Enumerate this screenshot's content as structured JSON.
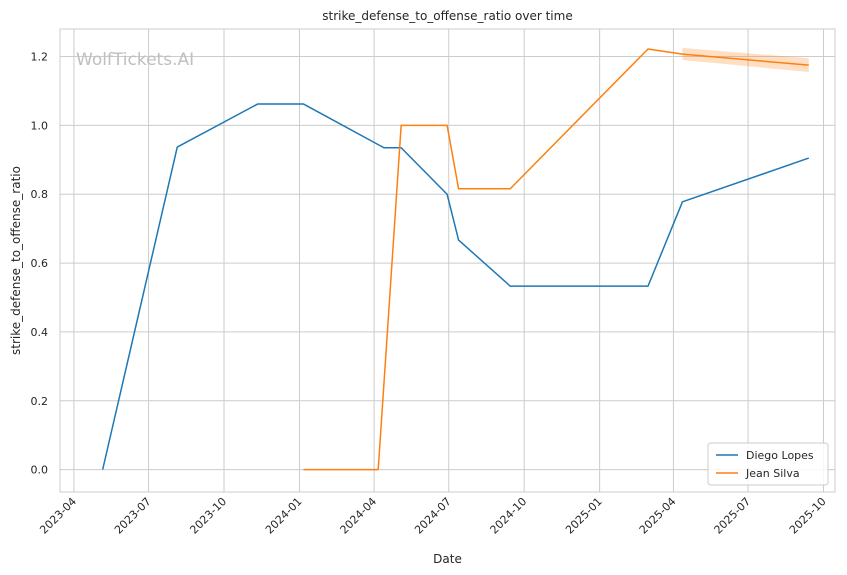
{
  "chart_data": {
    "type": "line",
    "title": "strike_defense_to_offense_ratio over time",
    "xlabel": "Date",
    "ylabel": "strike_defense_to_offense_ratio",
    "watermark": "WolfTickets.AI",
    "x_type": "date",
    "xlim": [
      "2023-03-15",
      "2025-10-15"
    ],
    "ylim": [
      -0.065,
      1.28
    ],
    "x_ticks": [
      "2023-04-01",
      "2023-07-01",
      "2023-10-01",
      "2024-01-01",
      "2024-04-01",
      "2024-07-01",
      "2024-10-01",
      "2025-01-01",
      "2025-04-01",
      "2025-07-01",
      "2025-10-01"
    ],
    "x_tick_labels": [
      "2023-04",
      "2023-07",
      "2023-10",
      "2024-01",
      "2024-04",
      "2024-07",
      "2024-10",
      "2025-01",
      "2025-04",
      "2025-07",
      "2025-10"
    ],
    "y_ticks": [
      0.0,
      0.2,
      0.4,
      0.6,
      0.8,
      1.0,
      1.2
    ],
    "y_tick_labels": [
      "0.0",
      "0.2",
      "0.4",
      "0.6",
      "0.8",
      "1.0",
      "1.2"
    ],
    "grid": true,
    "legend_position": "bottom-right",
    "series": [
      {
        "name": "Diego Lopes",
        "color": "#1f77b4",
        "x": [
          "2023-05-06",
          "2023-08-05",
          "2023-11-11",
          "2024-01-06",
          "2024-04-13",
          "2024-05-04",
          "2024-06-29",
          "2024-07-13",
          "2024-09-14",
          "2025-03-01",
          "2025-04-12",
          "2025-09-13"
        ],
        "y": [
          0.0,
          0.937,
          1.062,
          1.062,
          0.935,
          0.935,
          0.8,
          0.667,
          0.533,
          0.533,
          0.778,
          0.905
        ]
      },
      {
        "name": "Jean Silva",
        "color": "#ff7f0e",
        "x": [
          "2024-01-06",
          "2024-04-06",
          "2024-05-04",
          "2024-06-29",
          "2024-07-13",
          "2024-09-14",
          "2025-03-01",
          "2025-04-12",
          "2025-09-13"
        ],
        "y": [
          0.0,
          0.0,
          1.0,
          1.0,
          0.816,
          0.816,
          1.222,
          1.207,
          1.175
        ],
        "band": {
          "x": [
            "2025-04-12",
            "2025-09-13"
          ],
          "lower": [
            1.19,
            1.155
          ],
          "upper": [
            1.225,
            1.195
          ]
        }
      }
    ]
  }
}
